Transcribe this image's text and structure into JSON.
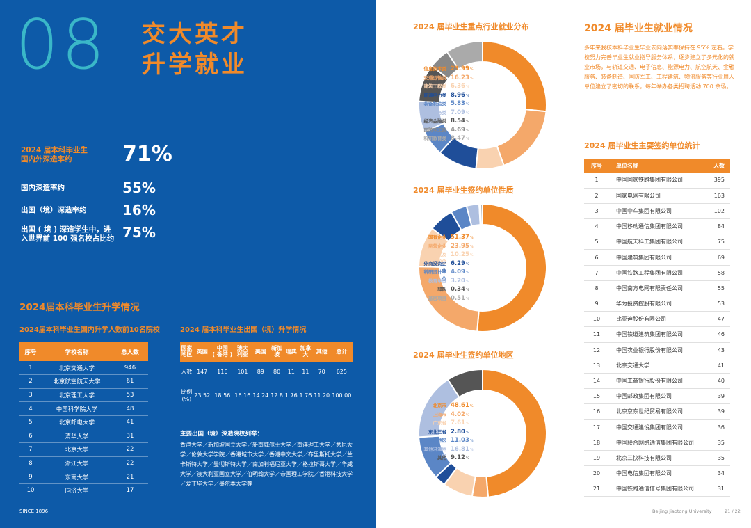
{
  "left": {
    "chapter_number": "08",
    "title_line1": "交大英才",
    "title_line2": "升学就业",
    "headline_stat": {
      "label_line1": "2024 届本科毕业生",
      "label_line2": "国内外深造率约",
      "value": "71%"
    },
    "stats": [
      {
        "label_line1": "国内深造率约",
        "label_line2": "",
        "value": "55%"
      },
      {
        "label_line1": "出国（境）深造率约",
        "label_line2": "",
        "value": "16%"
      },
      {
        "label_line1": "出国 ( 境 ) 深造学生中，进",
        "label_line2": "入世界前 100 强名校占比约",
        "value": "75%"
      }
    ],
    "section_title": "2024届本科毕业生升学情况",
    "domestic_title": "2024届本科毕业生国内升学人数前10名院校",
    "domestic_table": {
      "headers": [
        "序号",
        "学校名称",
        "总人数"
      ],
      "rows": [
        [
          "1",
          "北京交通大学",
          "946"
        ],
        [
          "2",
          "北京航空航天大学",
          "61"
        ],
        [
          "3",
          "北京理工大学",
          "53"
        ],
        [
          "4",
          "中国科学院大学",
          "48"
        ],
        [
          "5",
          "北京邮电大学",
          "41"
        ],
        [
          "6",
          "清华大学",
          "31"
        ],
        [
          "7",
          "北京大学",
          "22"
        ],
        [
          "8",
          "浙江大学",
          "22"
        ],
        [
          "9",
          "东南大学",
          "21"
        ],
        [
          "10",
          "同济大学",
          "17"
        ]
      ]
    },
    "abroad_title": "2024 届本科毕业生出国（境）升学情况",
    "abroad_table": {
      "headers": [
        "国家\n地区",
        "英国",
        "中国\n( 香港 )",
        "澳大\n利亚",
        "美国",
        "新加\n坡",
        "瑞典",
        "加拿\n大",
        "其他",
        "总计"
      ],
      "row1": [
        "人数",
        "147",
        "116",
        "101",
        "89",
        "80",
        "11",
        "11",
        "70",
        "625"
      ],
      "row2": [
        "比例\n(%)",
        "23.52",
        "18.56",
        "16.16",
        "14.24",
        "12.8",
        "1.76",
        "1.76",
        "11.20",
        "100.00"
      ]
    },
    "universities_title": "主要出国（境）深造院校列举：",
    "universities_text": "香港大学／新加坡国立大学／新南威尔士大学／南洋理工大学／悉尼大学／伦敦大学学院／香港城市大学／香港中文大学／布里斯托大学／兰卡斯特大学／曼彻斯特大学／南加利福尼亚大学／格拉斯哥大学／华威大学／澳大利亚国立大学／伯明翰大学／帝国理工学院／香港科技大学／爱丁堡大学／墨尔本大学等",
    "footer": "SINCE 1896"
  },
  "right": {
    "industry_title": "2024 届毕业生重点行业就业分布",
    "industry_items": [
      {
        "name": "信息技术类",
        "value": "23.99",
        "color": "#f08a2a"
      },
      {
        "name": "交通运输类",
        "value": "16.23",
        "color": "#f4a86a"
      },
      {
        "name": "建筑工程类",
        "value": "6.36",
        "color": "#f9d2b0"
      },
      {
        "name": "能源电力类",
        "value": "8.96",
        "color": "#1f4e99"
      },
      {
        "name": "装备制造类",
        "value": "5.83",
        "color": "#5b86c6"
      },
      {
        "name": "政府服务类",
        "value": "7.09",
        "color": "#aebfe0"
      },
      {
        "name": "经济金融类",
        "value": "8.54",
        "color": "#555555"
      },
      {
        "name": "国防军工类",
        "value": "4.69",
        "color": "#888888"
      },
      {
        "name": "科研教育类",
        "value": "8.47",
        "color": "#aaaaaa"
      }
    ],
    "nature_title": "2024 届毕业生签约单位性质",
    "nature_items": [
      {
        "name": "国有企业",
        "value": "51.37",
        "color": "#f08a2a"
      },
      {
        "name": "民营企业",
        "value": "23.95",
        "color": "#f4a86a"
      },
      {
        "name": "党政机关及事业单位",
        "value": "10.25",
        "color": "#f9d2b0"
      },
      {
        "name": "外商投资企业",
        "value": "6.29",
        "color": "#1f4e99"
      },
      {
        "name": "科研设计单位",
        "value": "4.09",
        "color": "#5b86c6"
      },
      {
        "name": "教育单位",
        "value": "3.20",
        "color": "#aebfe0"
      },
      {
        "name": "部队",
        "value": "0.34",
        "color": "#555555"
      },
      {
        "name": "基层项目",
        "value": "0.51",
        "color": "#aaaaaa"
      }
    ],
    "region_title": "2024 届毕业生签约单位地区",
    "region_items": [
      {
        "name": "北京市",
        "value": "48.61",
        "color": "#f08a2a"
      },
      {
        "name": "上海市",
        "value": "4.02",
        "color": "#f4a86a"
      },
      {
        "name": "广东省",
        "value": "7.61",
        "color": "#f9d2b0"
      },
      {
        "name": "东北三省",
        "value": "2.80",
        "color": "#1f4e99"
      },
      {
        "name": "西部地区",
        "value": "11.03",
        "color": "#5b86c6"
      },
      {
        "name": "其他沿海地区",
        "value": "16.81",
        "color": "#aebfe0"
      },
      {
        "name": "其他",
        "value": "9.12",
        "color": "#555555"
      }
    ],
    "employment_title": "2024 届毕业生就业情况",
    "employment_text": "多年来我校本科毕业生毕业去向落实率保持在 95% 左右。学校努力完善毕业生就业指导服务体系，逐步建立了多元化的就业市场，与轨道交通、电子信息、能源电力、航空航天、金融服务、装备制造、国防军工、工程建筑、物流服务等行业用人单位建立了密切的联系，每年举办各类招聘活动 700 余场。",
    "employers_title": "2024 届毕业生主要签约单位统计",
    "employers_table": {
      "headers": [
        "序号",
        "单位名称",
        "人数"
      ],
      "rows": [
        [
          "1",
          "中国国家铁路集团有限公司",
          "395"
        ],
        [
          "2",
          "国家电网有限公司",
          "163"
        ],
        [
          "3",
          "中国中车集团有限公司",
          "102"
        ],
        [
          "4",
          "中国移动通信集团有限公司",
          "84"
        ],
        [
          "5",
          "中国航天科工集团有限公司",
          "75"
        ],
        [
          "6",
          "中国建筑集团有限公司",
          "69"
        ],
        [
          "7",
          "中国铁路工程集团有限公司",
          "58"
        ],
        [
          "8",
          "中国南方电网有限责任公司",
          "55"
        ],
        [
          "9",
          "华为投资控股有限公司",
          "53"
        ],
        [
          "10",
          "比亚迪股份有限公司",
          "47"
        ],
        [
          "11",
          "中国铁道建筑集团有限公司",
          "46"
        ],
        [
          "12",
          "中国农业银行股份有限公司",
          "43"
        ],
        [
          "13",
          "北京交通大学",
          "41"
        ],
        [
          "14",
          "中国工商银行股份有限公司",
          "40"
        ],
        [
          "15",
          "中国邮政集团有限公司",
          "39"
        ],
        [
          "16",
          "北京京东世纪贸易有限公司",
          "39"
        ],
        [
          "17",
          "中国交通建设集团有限公司",
          "36"
        ],
        [
          "18",
          "中国联合网络通信集团有限公司",
          "35"
        ],
        [
          "19",
          "北京三快科技有限公司",
          "35"
        ],
        [
          "20",
          "中国电信集团有限公司",
          "34"
        ],
        [
          "21",
          "中国铁路通信信号集团有限公司",
          "31"
        ]
      ]
    },
    "footer_name": "Beijing Jiaotong University",
    "footer_pages": "21 / 22",
    "percent_sign": "%"
  }
}
